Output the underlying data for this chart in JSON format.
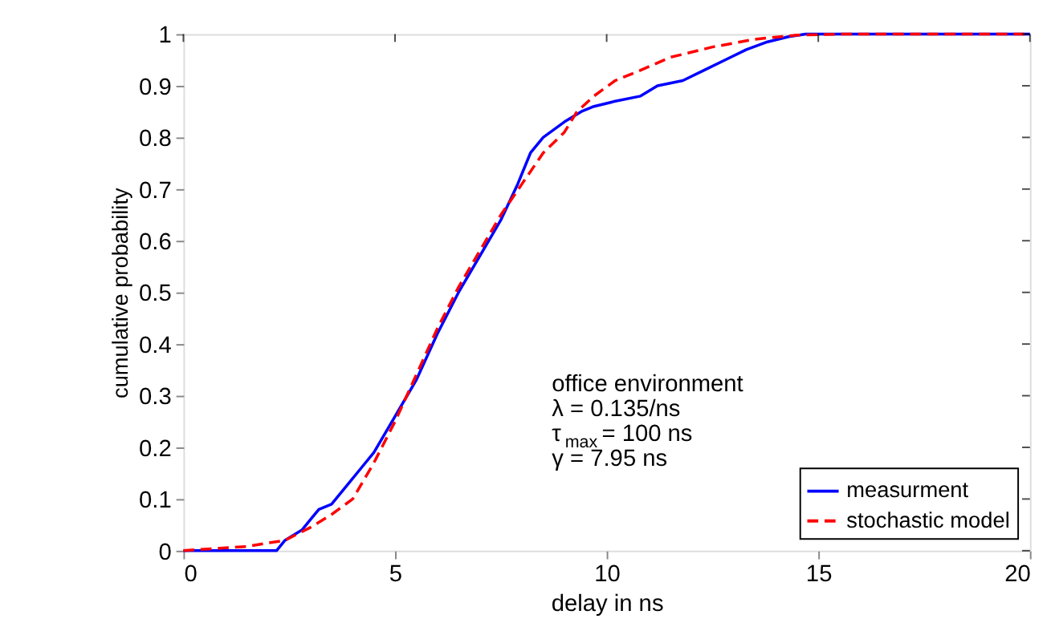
{
  "chart_data": {
    "type": "line",
    "xlabel": "delay in ns",
    "ylabel": "cumulative probability",
    "xlim": [
      0,
      20
    ],
    "ylim": [
      0,
      1
    ],
    "xticks": [
      0,
      5,
      10,
      15,
      20
    ],
    "yticks": [
      0,
      0.1,
      0.2,
      0.3,
      0.4,
      0.5,
      0.6,
      0.7,
      0.8,
      0.9,
      1
    ],
    "grid": false,
    "legend": "bottom right",
    "annotations": [
      "office environment",
      "λ = 0.135/ns",
      "τ$_{max}$ = 100 ns",
      "γ = 7.95 ns"
    ],
    "series": [
      {
        "name": "measurment",
        "color": "#0000ff",
        "line_style": "solid",
        "x": [
          0,
          2.2,
          2.4,
          2.8,
          3.0,
          3.2,
          3.5,
          3.9,
          4.2,
          4.5,
          5.0,
          5.5,
          6.0,
          6.5,
          7.0,
          7.5,
          7.9,
          8.2,
          8.5,
          9.0,
          9.4,
          9.7,
          10.2,
          10.8,
          11.2,
          11.8,
          12.3,
          12.8,
          13.3,
          13.8,
          14.3,
          14.7,
          20
        ],
        "values": [
          0,
          0,
          0.02,
          0.04,
          0.06,
          0.08,
          0.09,
          0.13,
          0.16,
          0.19,
          0.26,
          0.33,
          0.42,
          0.5,
          0.57,
          0.64,
          0.71,
          0.77,
          0.8,
          0.83,
          0.85,
          0.86,
          0.87,
          0.88,
          0.9,
          0.91,
          0.93,
          0.95,
          0.97,
          0.985,
          0.995,
          1,
          1
        ]
      },
      {
        "name": "stochastic model",
        "color": "#ff0000",
        "line_style": "dashed",
        "x": [
          0,
          0.5,
          1.5,
          2,
          2.4,
          3,
          3.5,
          4,
          4.5,
          5,
          5.5,
          6,
          6.5,
          7,
          7.5,
          8,
          8.5,
          9,
          9.3,
          9.7,
          10.2,
          10.8,
          11.5,
          12.5,
          13.5,
          14.5,
          15.5,
          20
        ],
        "values": [
          0,
          0.003,
          0.008,
          0.015,
          0.02,
          0.045,
          0.07,
          0.1,
          0.17,
          0.25,
          0.34,
          0.43,
          0.51,
          0.58,
          0.65,
          0.71,
          0.77,
          0.81,
          0.85,
          0.88,
          0.91,
          0.93,
          0.955,
          0.975,
          0.99,
          0.998,
          1,
          1
        ]
      }
    ]
  }
}
